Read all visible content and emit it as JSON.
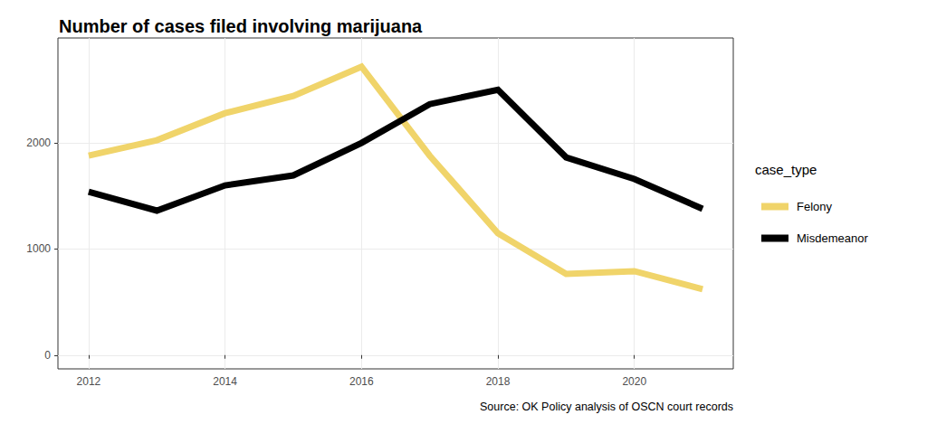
{
  "chart_data": {
    "type": "line",
    "title": "Number of cases filed involving marijuana",
    "caption": "Source: OK Policy analysis of OSCN court records",
    "legend_title": "case_type",
    "x": [
      2012,
      2013,
      2014,
      2015,
      2016,
      2017,
      2018,
      2019,
      2020,
      2021
    ],
    "series": [
      {
        "name": "Felony",
        "color": "#f0d46a",
        "values": [
          1881,
          2026,
          2281,
          2443,
          2720,
          1880,
          1149,
          766,
          791,
          621
        ]
      },
      {
        "name": "Misdemeanor",
        "color": "#000000",
        "values": [
          1540,
          1362,
          1600,
          1694,
          2000,
          2366,
          2502,
          1864,
          1660,
          1379
        ]
      }
    ],
    "xlim": [
      2011.55,
      2021.45
    ],
    "xticks": [
      2012,
      2014,
      2016,
      2018,
      2020
    ],
    "ylim": [
      -130,
      2990
    ],
    "yticks": [
      0,
      1000,
      2000
    ],
    "grid": true,
    "legend": "right"
  }
}
